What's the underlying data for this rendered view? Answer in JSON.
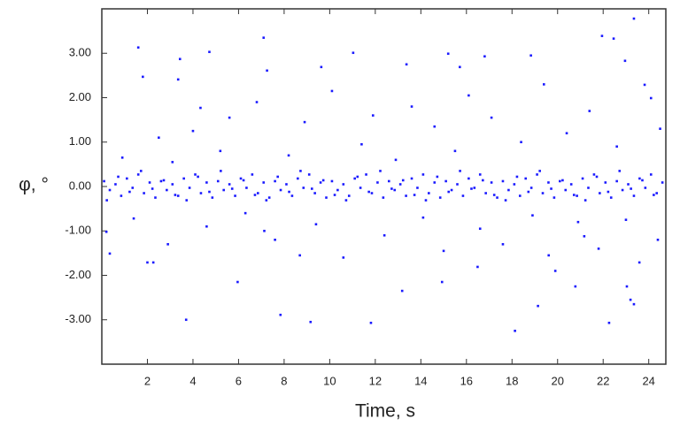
{
  "chart_data": {
    "type": "scatter",
    "x_label": "Time, s",
    "y_label": "φ, °",
    "color": "#1a1aff",
    "xlim": [
      0,
      24.75
    ],
    "ylim": [
      -4,
      4
    ],
    "xticks": [
      2,
      4,
      6,
      8,
      10,
      12,
      14,
      16,
      18,
      20,
      22,
      24
    ],
    "yticks": [
      {
        "value": -3,
        "label": "-3.00"
      },
      {
        "value": -2,
        "label": "-2.00"
      },
      {
        "value": -1,
        "label": "-1.00"
      },
      {
        "value": 0,
        "label": "0.00"
      },
      {
        "value": 1,
        "label": "1.00"
      },
      {
        "value": 2,
        "label": "2.00"
      },
      {
        "value": 3,
        "label": "3.00"
      }
    ],
    "x": [
      0.1,
      0.35,
      0.6,
      0.85,
      1.1,
      1.35,
      1.6,
      1.85,
      2.1,
      2.35,
      2.6,
      2.85,
      3.1,
      3.35,
      3.6,
      3.85,
      4.1,
      4.35,
      4.6,
      4.85,
      5.1,
      5.35,
      5.6,
      5.85,
      6.1,
      6.35,
      6.6,
      6.85,
      7.1,
      7.35,
      7.6,
      7.85,
      8.1,
      8.35,
      8.6,
      8.85,
      9.1,
      9.35,
      9.6,
      9.85,
      10.1,
      10.35,
      10.6,
      10.85,
      11.1,
      11.35,
      11.6,
      11.85,
      12.1,
      12.35,
      12.6,
      12.85,
      13.1,
      13.35,
      13.6,
      13.85,
      14.1,
      14.35,
      14.6,
      14.85,
      15.1,
      15.35,
      15.6,
      15.85,
      16.1,
      16.35,
      16.6,
      16.85,
      17.1,
      17.35,
      17.6,
      17.85,
      18.1,
      18.35,
      18.6,
      18.85,
      19.1,
      19.35,
      19.6,
      19.85,
      20.1,
      20.35,
      20.6,
      20.85,
      21.1,
      21.35,
      21.6,
      21.85,
      22.1,
      22.35,
      22.6,
      22.85,
      23.1,
      23.35,
      23.6,
      23.85,
      24.1,
      24.35,
      24.6,
      0.22,
      0.72,
      1.22,
      1.72,
      2.22,
      2.72,
      3.22,
      3.72,
      4.22,
      4.72,
      5.22,
      5.72,
      6.22,
      6.72,
      7.22,
      7.72,
      8.22,
      8.72,
      9.22,
      9.72,
      10.22,
      10.72,
      11.22,
      11.72,
      12.22,
      12.72,
      13.22,
      13.72,
      14.22,
      14.72,
      15.22,
      15.72,
      16.22,
      16.72,
      17.22,
      17.72,
      18.22,
      18.72,
      19.22,
      19.72,
      20.22,
      20.72,
      21.22,
      21.72,
      22.22,
      22.72,
      23.22,
      23.72,
      24.22,
      1.6,
      1.8,
      2.26,
      2.0,
      3.43,
      3.35,
      3.7,
      4.72,
      4.33,
      7.1,
      7.25,
      7.84,
      9.63,
      9.16,
      11.03,
      11.81,
      13.37,
      15.2,
      15.71,
      16.8,
      18.13,
      18.83,
      19.14,
      21.95,
      22.46,
      23.35,
      22.96,
      22.26,
      23.2,
      23.04,
      23.35,
      23.59,
      23.82,
      24.1,
      0.35,
      0.2,
      5.96,
      7.13,
      8.69,
      13.18,
      14.93,
      16.49,
      19.61,
      20.78,
      21.17,
      0.9,
      1.4,
      2.5,
      2.9,
      3.1,
      4.0,
      4.6,
      5.2,
      5.6,
      6.3,
      6.8,
      7.6,
      8.2,
      8.9,
      9.4,
      10.1,
      10.6,
      11.4,
      11.9,
      12.4,
      12.9,
      13.6,
      14.1,
      14.6,
      15.0,
      15.5,
      16.1,
      16.6,
      17.1,
      17.6,
      18.4,
      18.9,
      19.4,
      19.9,
      20.4,
      20.9,
      21.4,
      21.8,
      22.6,
      23.0,
      24.4,
      24.5
    ],
    "values": [
      0.12,
      -0.08,
      0.05,
      -0.21,
      0.18,
      -0.03,
      0.27,
      -0.15,
      0.09,
      -0.25,
      0.12,
      -0.08,
      0.05,
      -0.21,
      0.18,
      -0.03,
      0.27,
      -0.15,
      0.09,
      -0.25,
      0.12,
      -0.08,
      0.05,
      -0.21,
      0.18,
      -0.03,
      0.27,
      -0.15,
      0.09,
      -0.25,
      0.12,
      -0.08,
      0.05,
      -0.21,
      0.18,
      -0.03,
      0.27,
      -0.15,
      0.09,
      -0.25,
      0.12,
      -0.08,
      0.05,
      -0.21,
      0.18,
      -0.03,
      0.27,
      -0.15,
      0.09,
      -0.25,
      0.12,
      -0.08,
      0.05,
      -0.21,
      0.18,
      -0.03,
      0.27,
      -0.15,
      0.09,
      -0.25,
      0.12,
      -0.08,
      0.05,
      -0.21,
      0.18,
      -0.03,
      0.27,
      -0.15,
      0.09,
      -0.25,
      0.12,
      -0.08,
      0.05,
      -0.21,
      0.18,
      -0.03,
      0.27,
      -0.15,
      0.09,
      -0.25,
      0.12,
      -0.08,
      0.05,
      -0.21,
      0.18,
      -0.03,
      0.27,
      -0.15,
      0.09,
      -0.25,
      0.12,
      -0.08,
      0.05,
      -0.21,
      0.18,
      -0.03,
      0.27,
      -0.15,
      0.09,
      -0.31,
      0.22,
      -0.12,
      0.35,
      -0.05,
      0.14,
      -0.19,
      -0.31,
      0.22,
      -0.12,
      0.35,
      -0.05,
      0.14,
      -0.19,
      -0.31,
      0.22,
      -0.12,
      0.35,
      -0.05,
      0.14,
      -0.19,
      -0.31,
      0.22,
      -0.12,
      0.35,
      -0.05,
      0.14,
      -0.19,
      -0.31,
      0.22,
      -0.12,
      0.35,
      -0.05,
      0.14,
      -0.19,
      -0.31,
      0.22,
      -0.12,
      0.35,
      -0.05,
      0.14,
      -0.19,
      -0.31,
      0.22,
      -0.12,
      0.35,
      -0.05,
      0.14,
      -0.19,
      3.13,
      2.47,
      -1.71,
      -1.71,
      2.87,
      2.41,
      -3.0,
      3.03,
      1.77,
      3.35,
      2.61,
      -2.89,
      2.69,
      -3.05,
      3.01,
      -3.07,
      2.75,
      2.99,
      2.69,
      2.93,
      -3.25,
      2.95,
      -2.69,
      3.39,
      3.33,
      3.78,
      2.83,
      -3.07,
      -2.55,
      -2.25,
      -2.65,
      -1.71,
      2.29,
      1.99,
      -1.51,
      -1.02,
      -2.15,
      -1.0,
      -1.55,
      -2.35,
      -2.15,
      -1.81,
      -1.55,
      -2.25,
      -1.12,
      0.65,
      -0.72,
      1.1,
      -1.3,
      0.55,
      1.25,
      -0.9,
      0.8,
      1.55,
      -0.6,
      1.9,
      -1.2,
      0.7,
      1.45,
      -0.85,
      2.15,
      -1.6,
      0.95,
      1.6,
      -1.1,
      0.6,
      1.8,
      -0.7,
      1.35,
      -1.45,
      0.8,
      2.05,
      -0.95,
      1.55,
      -1.3,
      1.0,
      -0.65,
      2.3,
      -1.9,
      1.2,
      -0.8,
      1.7,
      -1.4,
      0.9,
      -0.75,
      -1.2,
      1.3
    ]
  }
}
